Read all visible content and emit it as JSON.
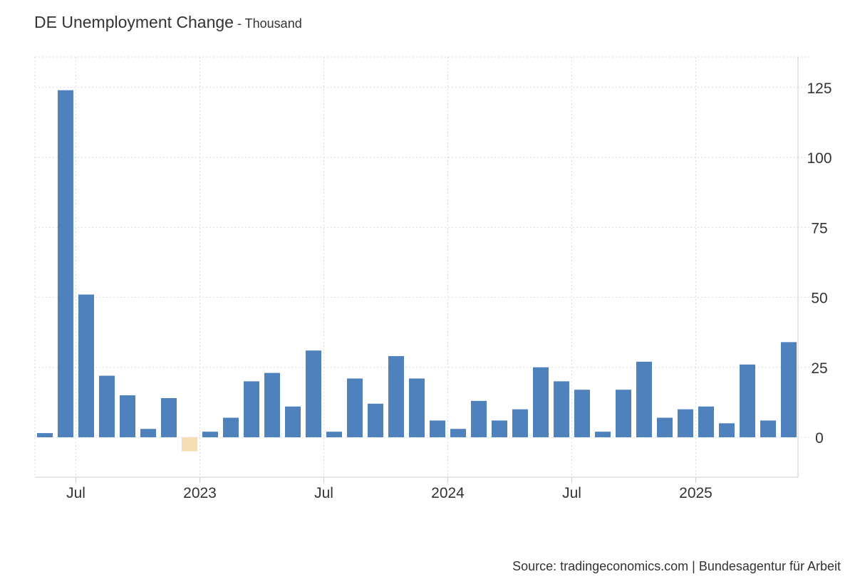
{
  "header": {
    "title": "DE Unemployment Change",
    "unit_suffix": " - Thousand"
  },
  "footer": {
    "source": "Source: tradingeconomics.com | Bundesagentur für Arbeit"
  },
  "colors": {
    "positive": "#4f81bd",
    "negative": "#f5deb3",
    "grid": "#d9d9d9",
    "text": "#333333"
  },
  "chart_data": {
    "type": "bar",
    "title": "DE Unemployment Change",
    "ylabel": "Thousand",
    "ylim": [
      -15,
      138
    ],
    "yticks": [
      0,
      25,
      50,
      75,
      100,
      125
    ],
    "y_axis_position": "right",
    "grid": true,
    "categories": [
      "2022-05",
      "2022-06",
      "2022-07",
      "2022-08",
      "2022-09",
      "2022-10",
      "2022-11",
      "2022-12",
      "2023-01",
      "2023-02",
      "2023-03",
      "2023-04",
      "2023-05",
      "2023-06",
      "2023-07",
      "2023-08",
      "2023-09",
      "2023-10",
      "2023-11",
      "2023-12",
      "2024-01",
      "2024-02",
      "2024-03",
      "2024-04",
      "2024-05",
      "2024-06",
      "2024-07",
      "2024-08",
      "2024-09",
      "2024-10",
      "2024-11",
      "2024-12",
      "2025-01",
      "2025-02",
      "2025-03",
      "2025-04",
      "2025-05"
    ],
    "values": [
      1.5,
      124,
      51,
      22,
      15,
      3,
      14,
      -5,
      2,
      7,
      20,
      23,
      11,
      31,
      2,
      21,
      12,
      29,
      21,
      6,
      3,
      13,
      6,
      10,
      25,
      20,
      17,
      2,
      17,
      27,
      7,
      10,
      11,
      5,
      26,
      6,
      34
    ],
    "x_tick_labels": [
      {
        "label": "Jul",
        "category": "2022-07"
      },
      {
        "label": "2023",
        "category": "2023-01"
      },
      {
        "label": "Jul",
        "category": "2023-07"
      },
      {
        "label": "2024",
        "category": "2024-01"
      },
      {
        "label": "Jul",
        "category": "2024-07"
      },
      {
        "label": "2025",
        "category": "2025-01"
      }
    ]
  }
}
